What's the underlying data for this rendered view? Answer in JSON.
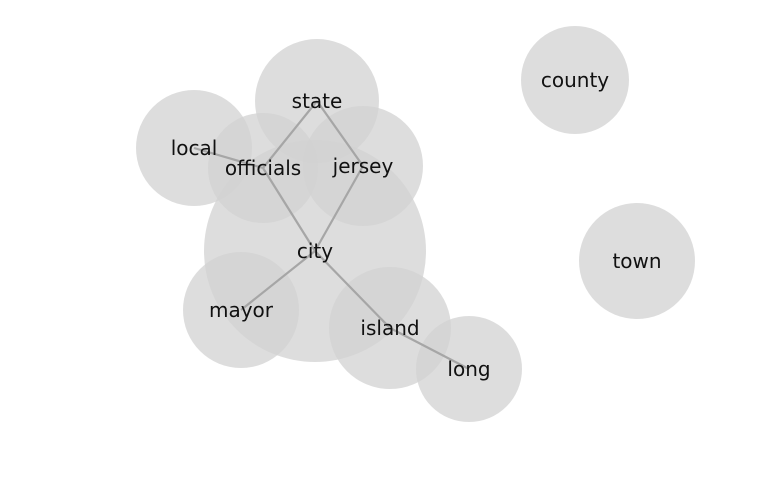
{
  "nodes": [
    {
      "id": "city",
      "label": "city"
    },
    {
      "id": "state",
      "label": "state"
    },
    {
      "id": "local",
      "label": "local"
    },
    {
      "id": "officials",
      "label": "officials"
    },
    {
      "id": "jersey",
      "label": "jersey"
    },
    {
      "id": "mayor",
      "label": "mayor"
    },
    {
      "id": "island",
      "label": "island"
    },
    {
      "id": "long",
      "label": "long"
    },
    {
      "id": "county",
      "label": "county"
    },
    {
      "id": "town",
      "label": "town"
    }
  ],
  "edges": [
    [
      "state",
      "officials"
    ],
    [
      "state",
      "jersey"
    ],
    [
      "local",
      "officials"
    ],
    [
      "officials",
      "city"
    ],
    [
      "jersey",
      "city"
    ],
    [
      "city",
      "mayor"
    ],
    [
      "city",
      "island"
    ],
    [
      "island",
      "long"
    ]
  ],
  "colors": {
    "node_fill": "#d2d2d2",
    "edge": "#a6a6a6",
    "label": "#111111"
  }
}
